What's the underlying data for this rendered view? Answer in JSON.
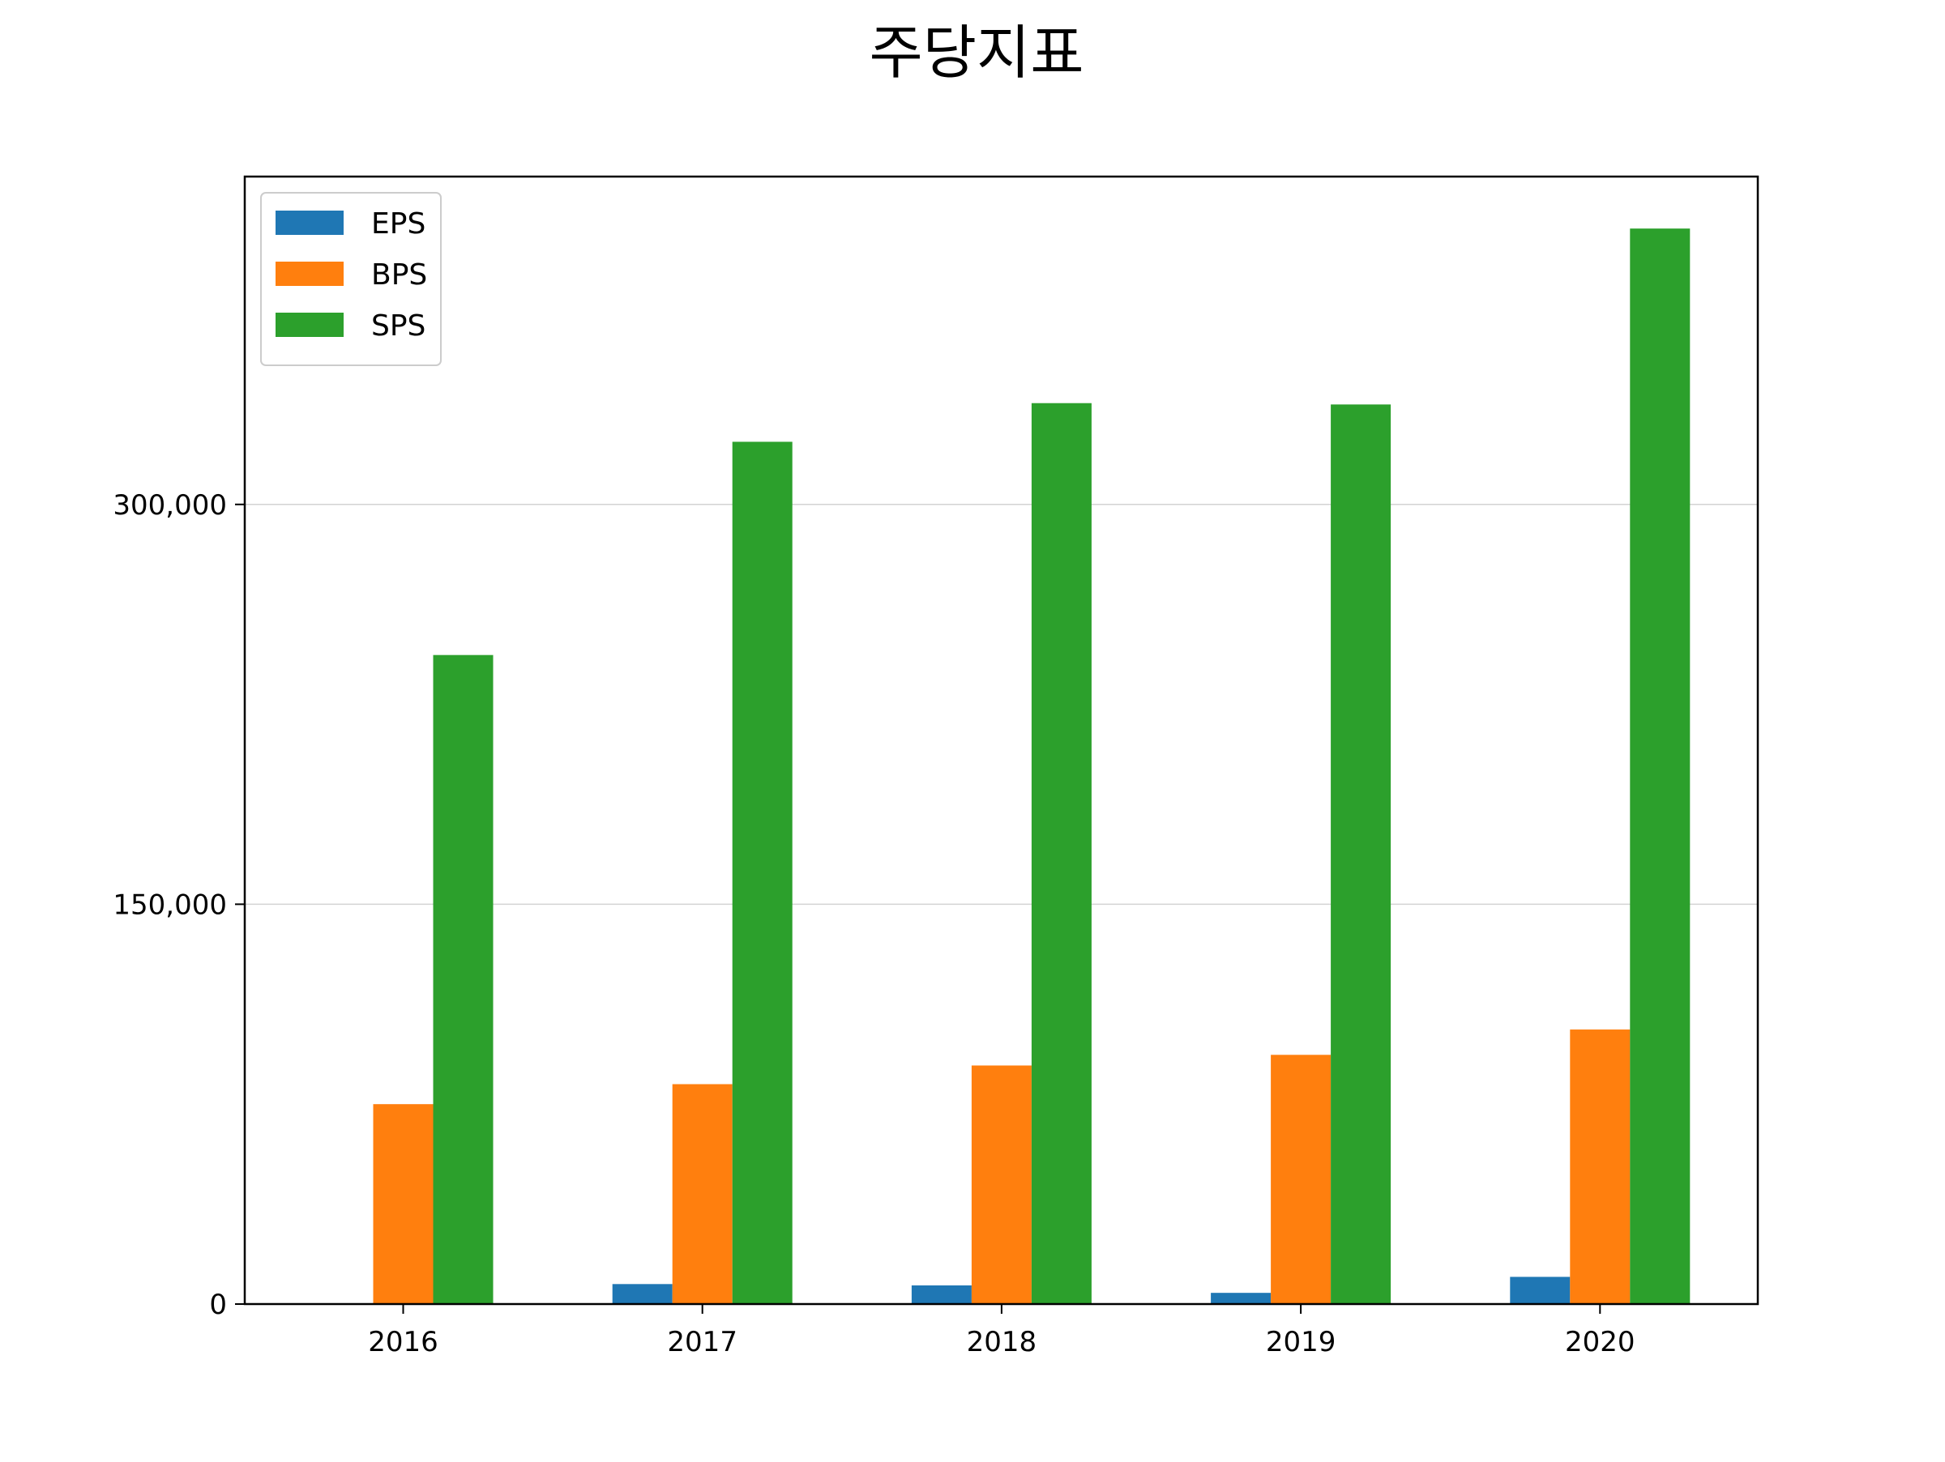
{
  "chart_data": {
    "type": "bar",
    "title": "주당지표",
    "xlabel": "",
    "ylabel": "",
    "categories": [
      "2016",
      "2017",
      "2018",
      "2019",
      "2020"
    ],
    "series": [
      {
        "name": "EPS",
        "color": "#1f77b4",
        "values": [
          0,
          7500,
          7000,
          4200,
          10200
        ]
      },
      {
        "name": "BPS",
        "color": "#ff7f0e",
        "values": [
          75000,
          82500,
          89500,
          93500,
          103000
        ]
      },
      {
        "name": "SPS",
        "color": "#2ca02c",
        "values": [
          243500,
          323500,
          338000,
          337500,
          403500
        ]
      }
    ],
    "ylim": [
      0,
      423000
    ],
    "yticks": [
      0,
      150000,
      300000
    ],
    "ytick_labels": [
      "0",
      "150,000",
      "300,000"
    ],
    "grid": "y",
    "legend": "upper-left"
  }
}
